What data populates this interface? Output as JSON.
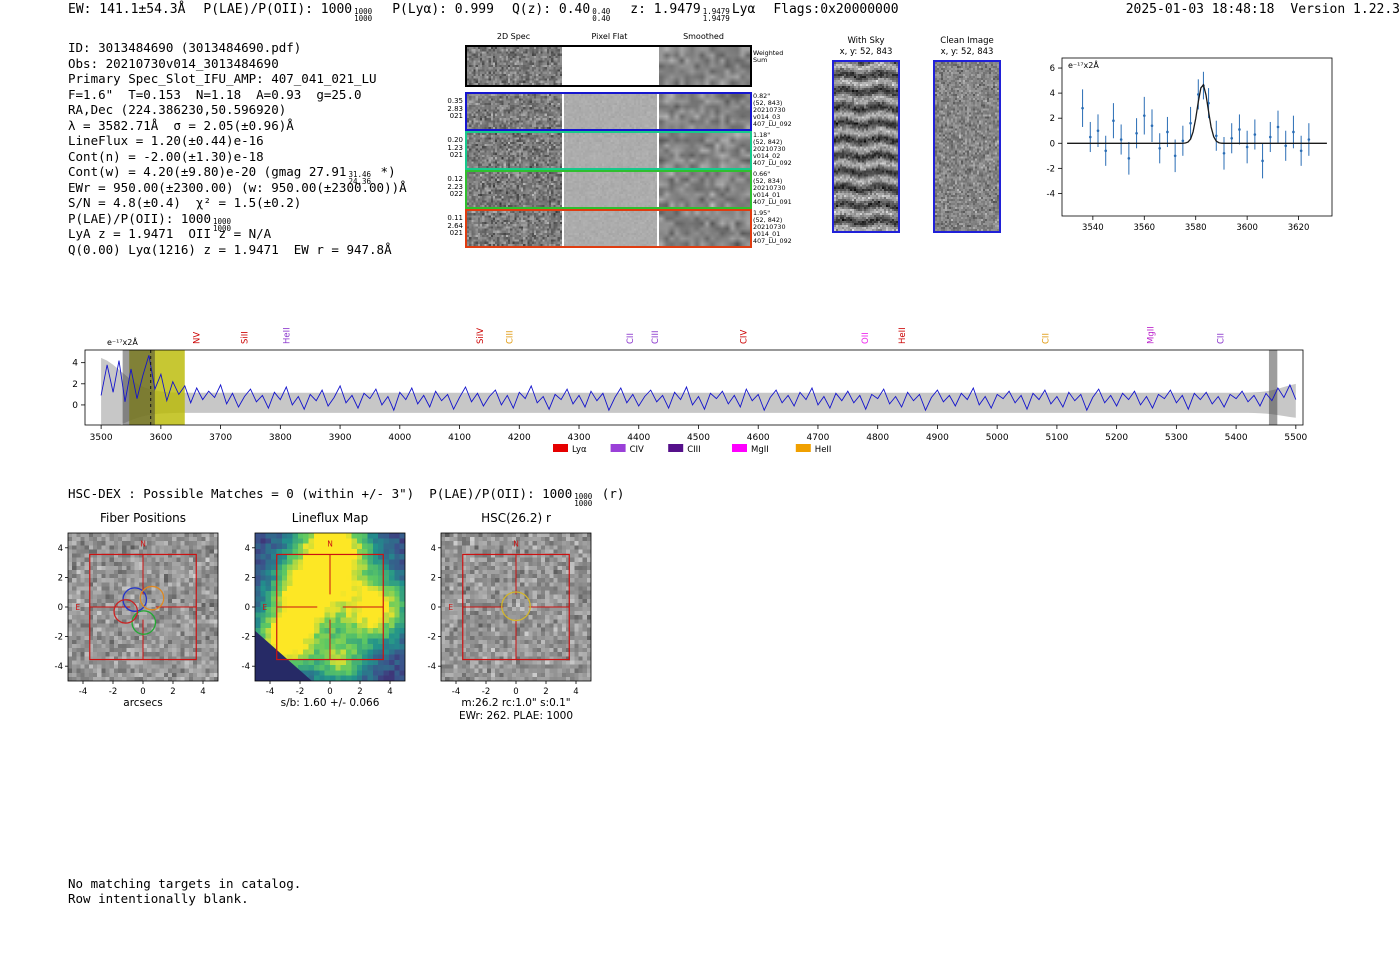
{
  "title_bar": {
    "ew": "EW: 141.1±54.3Å",
    "plae_pre": "P(LAE)/P(OII): 1000",
    "plae_top": "1000",
    "plae_bot": "1000",
    "plya": "P(Lyα): 0.999",
    "qz_pre": "Q(z): 0.40",
    "qz_top": "0.40",
    "qz_bot": "0.40",
    "z_pre": "z: 1.9479",
    "z_top": "1.9479",
    "z_bot": "1.9479",
    "z_type": "Lyα",
    "flags": "Flags:0x20000000",
    "datetime": "2025-01-03 18:48:18",
    "version": "Version 1.22.3"
  },
  "info": {
    "id": "ID: 3013484690 (3013484690.pdf)",
    "obs": "Obs: 20210730v014_3013484690",
    "slot": "Primary Spec_Slot_IFU_AMP: 407_041_021_LU",
    "seeing": "F=1.6\"  T=0.153  N=1.18  A=0.93  g=25.0",
    "radec": "RA,Dec (224.386230,50.596920)",
    "wave": "λ = 3582.71Å  σ = 2.05(±0.96)Å",
    "lineflux": "LineFlux = 1.20(±0.44)e-16",
    "cont_n": "Cont(n) = -2.00(±1.30)e-18",
    "cont_w_pre": "Cont(w) = 4.20(±9.80)e-20 (gmag 27.91",
    "cont_w_top": "31.46",
    "cont_w_bot": "24.36",
    "cont_w_post": " *)",
    "ewr": "EWr = 950.00(±2300.00) (w: 950.00(±2300.00))Å",
    "sn": "S/N = 4.8(±0.4)  χ² = 1.5(±0.2)",
    "plae_pre": "P(LAE)/P(OII): 1000",
    "plae_top": "1000",
    "plae_bot": "1000",
    "zline": "LyA z = 1.9471  OII z = N/A",
    "qline": "Q(0.00) Lyα(1216) z = 1.9471  EW r = 947.8Å"
  },
  "cutouts": {
    "col_headers": [
      "2D Spec",
      "Pixel Flat",
      "Smoothed"
    ],
    "weighted_label": [
      "Weighted",
      "Sum"
    ],
    "rows": [
      {
        "border": "#1515cf",
        "left": [
          "0.35",
          "2.83",
          "021"
        ],
        "right": [
          "0.82\"",
          "(52, 843)",
          "20210730",
          "v014_03",
          "407_LU_092"
        ]
      },
      {
        "border": "#17c98c",
        "left": [
          "0.20",
          "1.23",
          "021"
        ],
        "right": [
          "1.18\"",
          "(52, 842)",
          "20210730",
          "v014_02",
          "407_LU_092"
        ]
      },
      {
        "border": "#2fbf2f",
        "left": [
          "0.12",
          "2.23",
          "022"
        ],
        "right": [
          "0.66\"",
          "(52, 834)",
          "20210730",
          "v014_01",
          "407_LU_091"
        ]
      },
      {
        "border": "#e03c10",
        "left": [
          "0.11",
          "2.64",
          "021"
        ],
        "right": [
          "1.95\"",
          "(52, 842)",
          "20210730",
          "v014_01",
          "407_LU_092"
        ]
      }
    ]
  },
  "sky": {
    "with_sky_title": "With Sky",
    "with_sky_sub": "x, y: 52, 843",
    "clean_title": "Clean Image",
    "clean_sub": "x, y: 52, 843"
  },
  "hsc_line": {
    "pre": "HSC-DEX : Possible Matches = 0 (within +/- 3\")  P(LAE)/P(OII): 1000",
    "top": "1000",
    "bot": "1000",
    "post": " (r)"
  },
  "panels": {
    "axis_ticks": [
      -4,
      -2,
      0,
      2,
      4
    ],
    "fiber": {
      "title": "Fiber Positions",
      "xlabel": "arcsecs"
    },
    "lineflux": {
      "title": "Lineflux Map",
      "xlabel": "s/b: 1.60 +/- 0.066"
    },
    "hsc": {
      "title": "HSC(26.2) r",
      "xlabel": "m:26.2 rc:1.0\" s:0.1\"",
      "xlabel2": "EWr: 262. PLAE: 1000"
    },
    "compass_n": "N",
    "compass_e": "E"
  },
  "footer": {
    "line1": "No matching targets in catalog.",
    "line2": "Row intentionally blank."
  },
  "chart_data": [
    {
      "name": "line_fit_inset",
      "type": "scatter",
      "annotation": "e⁻¹⁷x2Å",
      "xlim": [
        3528,
        3633
      ],
      "ylim": [
        -5.8,
        6.8
      ],
      "xticks": [
        3540,
        3560,
        3580,
        3600,
        3620
      ],
      "yticks": [
        -4,
        -2,
        0,
        2,
        4,
        6
      ],
      "x": [
        3536,
        3539,
        3542,
        3545,
        3548,
        3551,
        3554,
        3557,
        3560,
        3563,
        3566,
        3569,
        3572,
        3575,
        3578,
        3581,
        3583,
        3585,
        3588,
        3591,
        3594,
        3597,
        3600,
        3603,
        3606,
        3609,
        3612,
        3615,
        3618,
        3621,
        3624
      ],
      "y": [
        2.8,
        0.5,
        1.0,
        -0.6,
        1.8,
        0.3,
        -1.2,
        0.8,
        2.2,
        1.4,
        -0.4,
        0.9,
        -1.0,
        0.2,
        1.6,
        3.9,
        4.6,
        3.2,
        0.6,
        -0.8,
        0.4,
        1.1,
        -0.3,
        0.7,
        -1.4,
        0.5,
        1.3,
        -0.2,
        0.9,
        -0.6,
        0.3
      ],
      "yerr": [
        1.5,
        1.2,
        1.3,
        1.2,
        1.4,
        1.2,
        1.3,
        1.2,
        1.5,
        1.3,
        1.2,
        1.2,
        1.3,
        1.2,
        1.3,
        1.2,
        1.1,
        1.2,
        1.2,
        1.3,
        1.2,
        1.2,
        1.3,
        1.2,
        1.4,
        1.2,
        1.3,
        1.2,
        1.3,
        1.2,
        1.3
      ],
      "fit": {
        "mu": 3582.71,
        "sigma": 2.05,
        "amplitude": 4.7,
        "baseline": 0.0
      },
      "point_color": "#2a6db5",
      "fit_color": "#1a1a1a"
    },
    {
      "name": "full_spectrum",
      "type": "line",
      "annotation": "e⁻¹⁷x2Å",
      "x_start": 3500,
      "x_step": 10,
      "values": [
        0.9,
        3.8,
        1.2,
        4.2,
        0.3,
        3.4,
        0.6,
        2.8,
        4.7,
        1.5,
        2.9,
        0.4,
        2.2,
        1.0,
        1.8,
        0.2,
        1.6,
        0.5,
        1.3,
        0.7,
        1.9,
        0.1,
        1.1,
        -0.2,
        0.8,
        1.5,
        0.3,
        0.9,
        -0.3,
        1.2,
        0.5,
        1.7,
        0.0,
        0.8,
        -0.4,
        1.0,
        0.4,
        1.4,
        -0.1,
        0.7,
        1.8,
        0.2,
        0.9,
        -0.3,
        1.1,
        0.6,
        1.5,
        0.0,
        0.8,
        -0.5,
        1.2,
        0.5,
        1.6,
        0.1,
        0.9,
        -0.2,
        1.3,
        0.4,
        1.0,
        -0.4,
        0.7,
        1.7,
        0.3,
        1.1,
        -0.1,
        0.8,
        1.4,
        0.0,
        0.9,
        -0.3,
        1.2,
        0.6,
        1.8,
        0.2,
        0.8,
        -0.4,
        1.0,
        0.5,
        1.5,
        0.1,
        0.9,
        -0.2,
        1.3,
        0.4,
        1.1,
        -0.5,
        0.7,
        1.6,
        0.2,
        1.0,
        -0.1,
        0.8,
        1.4,
        0.3,
        0.9,
        -0.3,
        1.2,
        0.5,
        1.7,
        0.0,
        0.8,
        -0.4,
        1.1,
        0.6,
        1.3,
        0.1,
        0.9,
        -0.2,
        1.5,
        0.4,
        1.0,
        -0.5,
        0.7,
        1.4,
        0.2,
        0.9,
        -0.1,
        1.2,
        0.5,
        1.6,
        0.0,
        0.8,
        -0.3,
        1.1,
        0.4,
        1.3,
        0.2,
        0.9,
        -0.4,
        1.0,
        0.6,
        1.5,
        0.1,
        0.8,
        -0.2,
        1.2,
        0.4,
        1.0,
        -0.5,
        0.7,
        1.4,
        0.3,
        0.9,
        -0.1,
        1.1,
        0.5,
        1.6,
        0.0,
        0.8,
        -0.3,
        1.0,
        0.6,
        1.3,
        0.2,
        0.9,
        -0.4,
        1.1,
        0.5,
        1.4,
        0.1,
        0.8,
        -0.2,
        1.2,
        0.4,
        1.0,
        -0.5,
        0.7,
        1.5,
        0.2,
        0.9,
        -0.1,
        1.1,
        0.5,
        1.3,
        0.0,
        0.8,
        -0.3,
        1.0,
        0.6,
        1.4,
        0.2,
        0.9,
        -0.4,
        1.1,
        0.5,
        1.2,
        0.1,
        0.8,
        -0.2,
        1.0,
        0.6,
        1.3,
        0.3,
        0.9,
        -0.1,
        1.1,
        0.4,
        1.6,
        0.7,
        1.9,
        0.5
      ],
      "xlim": [
        3473,
        5512
      ],
      "ylim": [
        -1.9,
        5.2
      ],
      "xticks": [
        3500,
        3600,
        3700,
        3800,
        3900,
        4000,
        4100,
        4200,
        4300,
        4400,
        4500,
        4600,
        4700,
        4800,
        4900,
        5000,
        5100,
        5200,
        5300,
        5400,
        5500
      ],
      "yticks": [
        0,
        2,
        4
      ],
      "line_color": "#1414cc",
      "band_color": "#c4c4c4",
      "highlight": {
        "x0": 3547,
        "x1": 3640,
        "color": "#b9b900"
      },
      "edge_bands": [
        {
          "x0": 3536,
          "x1": 3590
        },
        {
          "x0": 5455,
          "x1": 5469
        }
      ],
      "marker_wavelength": 3583,
      "emission_lines": [
        {
          "label": "NV",
          "wavelength": 3660,
          "color": "#cc0000"
        },
        {
          "label": "SiII",
          "wavelength": 3740,
          "color": "#cc0000"
        },
        {
          "label": "HeII",
          "wavelength": 3810,
          "color": "#8833cc"
        },
        {
          "label": "SiIV",
          "wavelength": 4134,
          "color": "#cc0000"
        },
        {
          "label": "CIII",
          "wavelength": 4184,
          "color": "#e09a10"
        },
        {
          "label": "CII",
          "wavelength": 4385,
          "color": "#8833cc"
        },
        {
          "label": "CIII",
          "wavelength": 4427,
          "color": "#8833cc"
        },
        {
          "label": "CIV",
          "wavelength": 4575,
          "color": "#cc0000"
        },
        {
          "label": "OII",
          "wavelength": 4779,
          "color": "#ee22ee"
        },
        {
          "label": "HeII",
          "wavelength": 4841,
          "color": "#cc0000"
        },
        {
          "label": "CII",
          "wavelength": 5081,
          "color": "#e09a10"
        },
        {
          "label": "MgII",
          "wavelength": 5257,
          "color": "#bb22cc"
        },
        {
          "label": "CII",
          "wavelength": 5374,
          "color": "#8833cc"
        }
      ],
      "legend": [
        {
          "label": "Lyα",
          "color": "#e60000"
        },
        {
          "label": "CIV",
          "color": "#9a40d8"
        },
        {
          "label": "CIII",
          "color": "#55108a"
        },
        {
          "label": "MgII",
          "color": "#ff00ff"
        },
        {
          "label": "HeII",
          "color": "#f0a000"
        }
      ]
    }
  ]
}
